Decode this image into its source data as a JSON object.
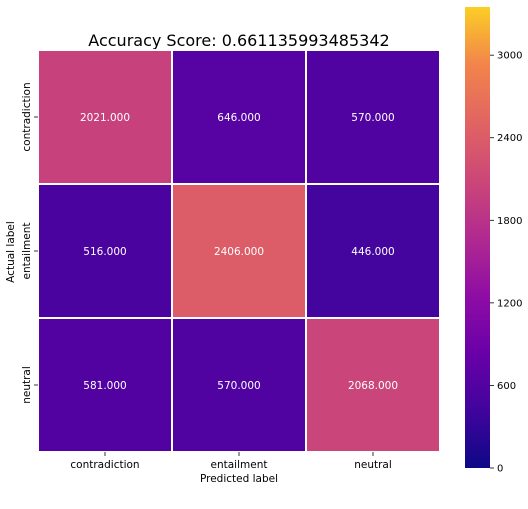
{
  "chart_data": {
    "type": "heatmap",
    "title": "Accuracy Score: 0.661135993485342",
    "xlabel": "Predicted label",
    "ylabel": "Actual label",
    "x_categories": [
      "contradiction",
      "entailment",
      "neutral"
    ],
    "y_categories": [
      "contradiction",
      "entailment",
      "neutral"
    ],
    "values": [
      [
        2021,
        646,
        570
      ],
      [
        516,
        2406,
        446
      ],
      [
        581,
        570,
        2068
      ]
    ],
    "value_labels": [
      [
        "2021.000",
        "646.000",
        "570.000"
      ],
      [
        "516.000",
        "2406.000",
        "446.000"
      ],
      [
        "581.000",
        "570.000",
        "2068.000"
      ]
    ],
    "colormap": "plasma",
    "colorbar": {
      "range": [
        0,
        3350
      ],
      "ticks": [
        0,
        600,
        1200,
        1800,
        2400,
        3000
      ]
    },
    "grid": false,
    "legend": "colorbar-right"
  }
}
